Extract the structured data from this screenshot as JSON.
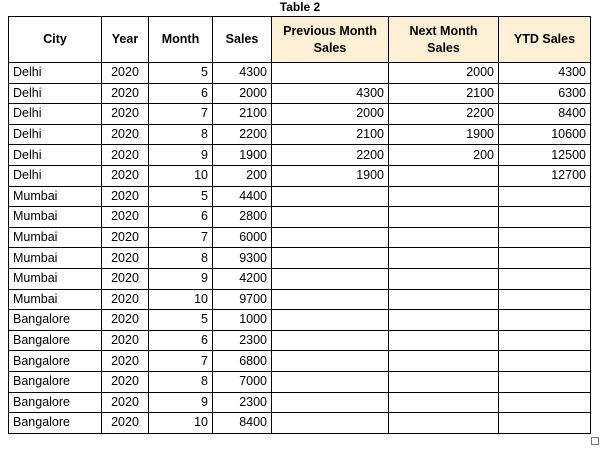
{
  "caption": "Table 2",
  "headers": [
    "City",
    "Year",
    "Month",
    "Sales",
    "Previous Month Sales",
    "Next Month Sales",
    "YTD Sales"
  ],
  "header_highlight_color": "#fdf0d5",
  "rows": [
    [
      "Delhi",
      "2020",
      "5",
      "4300",
      "",
      "2000",
      "4300"
    ],
    [
      "Delhi",
      "2020",
      "6",
      "2000",
      "4300",
      "2100",
      "6300"
    ],
    [
      "Delhi",
      "2020",
      "7",
      "2100",
      "2000",
      "2200",
      "8400"
    ],
    [
      "Delhi",
      "2020",
      "8",
      "2200",
      "2100",
      "1900",
      "10600"
    ],
    [
      "Delhi",
      "2020",
      "9",
      "1900",
      "2200",
      "200",
      "12500"
    ],
    [
      "Delhi",
      "2020",
      "10",
      "200",
      "1900",
      "",
      "12700"
    ],
    [
      "Mumbai",
      "2020",
      "5",
      "4400",
      "",
      "",
      ""
    ],
    [
      "Mumbai",
      "2020",
      "6",
      "2800",
      "",
      "",
      ""
    ],
    [
      "Mumbai",
      "2020",
      "7",
      "6000",
      "",
      "",
      ""
    ],
    [
      "Mumbai",
      "2020",
      "8",
      "9300",
      "",
      "",
      ""
    ],
    [
      "Mumbai",
      "2020",
      "9",
      "4200",
      "",
      "",
      ""
    ],
    [
      "Mumbai",
      "2020",
      "10",
      "9700",
      "",
      "",
      ""
    ],
    [
      "Bangalore",
      "2020",
      "5",
      "1000",
      "",
      "",
      ""
    ],
    [
      "Bangalore",
      "2020",
      "6",
      "2300",
      "",
      "",
      ""
    ],
    [
      "Bangalore",
      "2020",
      "7",
      "6800",
      "",
      "",
      ""
    ],
    [
      "Bangalore",
      "2020",
      "8",
      "7000",
      "",
      "",
      ""
    ],
    [
      "Bangalore",
      "2020",
      "9",
      "2300",
      "",
      "",
      ""
    ],
    [
      "Bangalore",
      "2020",
      "10",
      "8400",
      "",
      "",
      ""
    ]
  ]
}
